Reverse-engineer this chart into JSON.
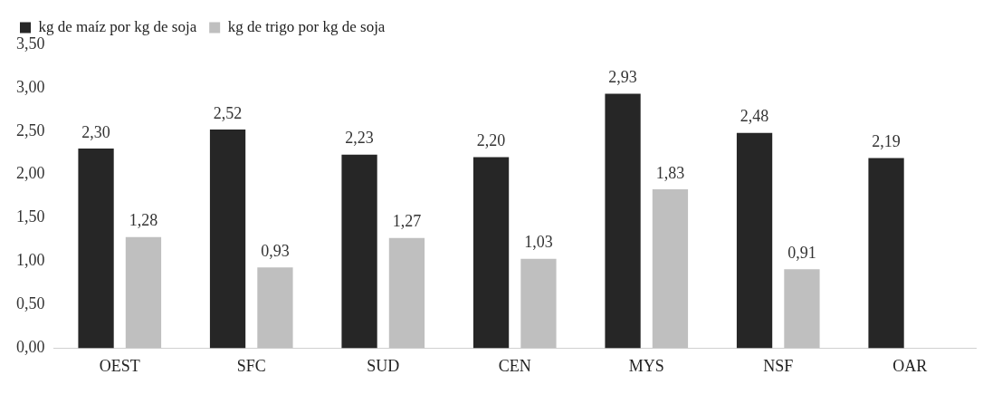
{
  "chart_data": {
    "type": "bar",
    "categories": [
      "OEST",
      "SFC",
      "SUD",
      "CEN",
      "MYS",
      "NSF",
      "OAR"
    ],
    "series": [
      {
        "name": "kg de maíz por kg de soja",
        "color": "#262626",
        "values": [
          2.3,
          2.52,
          2.23,
          2.2,
          2.93,
          2.48,
          2.19
        ],
        "value_labels": [
          "2,30",
          "2,52",
          "2,23",
          "2,20",
          "2,93",
          "2,48",
          "2,19"
        ]
      },
      {
        "name": "kg de trigo por kg de soja",
        "color": "#bfbfbf",
        "values": [
          1.28,
          0.93,
          1.27,
          1.03,
          1.83,
          0.91,
          null
        ],
        "value_labels": [
          "1,28",
          "0,93",
          "1,27",
          "1,03",
          "1,83",
          "0,91",
          null
        ]
      }
    ],
    "ylim": [
      0,
      3.5
    ],
    "yticks": [
      {
        "value": 0,
        "label": "0,00"
      },
      {
        "value": 0.5,
        "label": "0,50"
      },
      {
        "value": 1,
        "label": "1,00"
      },
      {
        "value": 1.5,
        "label": "1,50"
      },
      {
        "value": 2,
        "label": "2,00"
      },
      {
        "value": 2.5,
        "label": "2,50"
      },
      {
        "value": 3,
        "label": "3,00"
      },
      {
        "value": 3.5,
        "label": "3,50"
      }
    ],
    "grid": false,
    "legend": "top left"
  }
}
